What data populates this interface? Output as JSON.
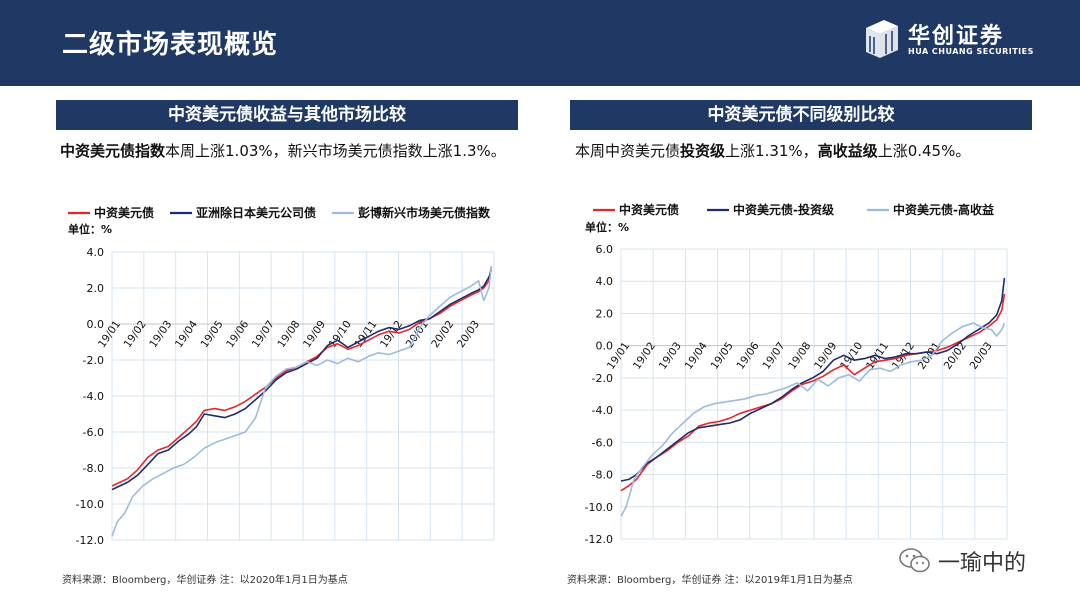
{
  "header": {
    "title": "二级市场表现概览",
    "logo_cn": "华创证券",
    "logo_en": "HUA CHUANG SECURITIES"
  },
  "left_panel": {
    "title": "中资美元债收益与其他市场比较",
    "summary_bold": "中资美元债指数",
    "summary_rest": "本周上涨1.03%，新兴市场美元债指数上涨1.3%。",
    "source": "资料来源：Bloomberg，华创证券   注：以2020年1月1日为基点"
  },
  "right_panel": {
    "title": "中资美元债不同级别比较",
    "summary_p1": "本周中资美元债",
    "summary_b1": "投资级",
    "summary_p2": "上涨1.31%，",
    "summary_b2": "高收益级",
    "summary_p3": "上涨0.45%。",
    "source": "资料来源：Bloomberg，华创证券   注：以2019年1月1日为基点"
  },
  "watermark": {
    "text": "一瑜中的"
  },
  "colors": {
    "header_bg": "#1f3864",
    "red": "#e8262a",
    "navy": "#1f2d6b",
    "light_blue": "#9dbbe0",
    "grid": "#d6e4f0"
  },
  "chart_data": [
    {
      "type": "line",
      "unit_label": "单位：%",
      "ylim": [
        -12,
        4
      ],
      "yticks": [
        "4.0",
        "2.0",
        "0.0",
        "-2.0",
        "-4.0",
        "-6.0",
        "-8.0",
        "-10.0",
        "-12.0"
      ],
      "xticks": [
        "19/01",
        "19/02",
        "19/03",
        "19/04",
        "19/05",
        "19/06",
        "19/07",
        "19/08",
        "19/09",
        "19/10",
        "19/11",
        "19/12",
        "20/01",
        "20/02",
        "20/03"
      ],
      "xlim": [
        0,
        14.9
      ],
      "grid": true,
      "legend_position": "top",
      "series": [
        {
          "name": "中资美元债",
          "color": "#e8262a",
          "x": [
            0,
            0.3,
            0.6,
            1.0,
            1.4,
            1.8,
            2.2,
            2.6,
            3.0,
            3.3,
            3.6,
            4.0,
            4.4,
            4.8,
            5.2,
            5.6,
            6.0,
            6.4,
            6.8,
            7.2,
            7.6,
            8.0,
            8.4,
            8.8,
            9.2,
            9.6,
            10.0,
            10.4,
            10.8,
            11.2,
            11.6,
            12.0,
            12.4,
            12.8,
            13.2,
            13.6,
            14.0,
            14.3,
            14.5,
            14.7,
            14.8
          ],
          "y": [
            -9.0,
            -8.8,
            -8.6,
            -8.1,
            -7.4,
            -7.0,
            -6.8,
            -6.3,
            -5.8,
            -5.4,
            -4.8,
            -4.7,
            -4.8,
            -4.6,
            -4.3,
            -3.9,
            -3.5,
            -3.0,
            -2.6,
            -2.4,
            -2.1,
            -1.8,
            -1.3,
            -1.1,
            -1.4,
            -1.2,
            -0.9,
            -0.6,
            -0.4,
            -0.5,
            -0.3,
            0.1,
            0.3,
            0.6,
            1.0,
            1.3,
            1.6,
            1.8,
            2.0,
            2.4,
            3.2
          ]
        },
        {
          "name": "亚洲除日本美元公司债",
          "color": "#1f2d6b",
          "x": [
            0,
            0.3,
            0.6,
            1.0,
            1.4,
            1.8,
            2.2,
            2.6,
            3.0,
            3.3,
            3.6,
            4.0,
            4.4,
            4.8,
            5.2,
            5.6,
            6.0,
            6.4,
            6.8,
            7.2,
            7.6,
            8.0,
            8.4,
            8.8,
            9.2,
            9.6,
            10.0,
            10.4,
            10.8,
            11.2,
            11.6,
            12.0,
            12.4,
            12.8,
            13.2,
            13.6,
            14.0,
            14.3,
            14.5,
            14.7,
            14.8
          ],
          "y": [
            -9.2,
            -9.0,
            -8.8,
            -8.4,
            -7.8,
            -7.2,
            -7.0,
            -6.5,
            -6.1,
            -5.7,
            -5.0,
            -5.1,
            -5.2,
            -5.0,
            -4.7,
            -4.2,
            -3.7,
            -3.1,
            -2.7,
            -2.5,
            -2.2,
            -1.9,
            -1.2,
            -0.9,
            -1.3,
            -1.0,
            -0.7,
            -0.4,
            -0.2,
            -0.3,
            -0.1,
            0.2,
            0.3,
            0.7,
            1.1,
            1.4,
            1.7,
            1.9,
            2.1,
            2.6,
            3.0
          ]
        },
        {
          "name": "彭博新兴市场美元债指数",
          "color": "#9dbbe0",
          "x": [
            0,
            0.2,
            0.5,
            0.8,
            1.2,
            1.6,
            2.0,
            2.4,
            2.8,
            3.2,
            3.6,
            4.0,
            4.4,
            4.8,
            5.2,
            5.6,
            6.0,
            6.4,
            6.8,
            7.2,
            7.6,
            8.0,
            8.4,
            8.8,
            9.2,
            9.6,
            10.0,
            10.4,
            10.8,
            11.2,
            11.6,
            12.0,
            12.4,
            12.8,
            13.2,
            13.6,
            14.0,
            14.3,
            14.5,
            14.7,
            14.8
          ],
          "y": [
            -11.8,
            -11.0,
            -10.5,
            -9.6,
            -9.0,
            -8.6,
            -8.3,
            -8.0,
            -7.8,
            -7.4,
            -6.9,
            -6.6,
            -6.4,
            -6.2,
            -6.0,
            -5.2,
            -3.5,
            -2.9,
            -2.5,
            -2.4,
            -2.1,
            -2.3,
            -2.0,
            -2.2,
            -1.9,
            -2.1,
            -1.8,
            -1.6,
            -1.7,
            -1.5,
            -1.3,
            -0.2,
            0.5,
            1.0,
            1.5,
            1.8,
            2.1,
            2.4,
            1.3,
            2.0,
            3.2
          ]
        }
      ]
    },
    {
      "type": "line",
      "unit_label": "单位：%",
      "ylim": [
        -12,
        6
      ],
      "yticks": [
        "6.0",
        "4.0",
        "2.0",
        "0.0",
        "-2.0",
        "-4.0",
        "-6.0",
        "-8.0",
        "-10.0",
        "-12.0"
      ],
      "xticks": [
        "19/01",
        "19/02",
        "19/03",
        "19/04",
        "19/05",
        "19/06",
        "19/07",
        "19/08",
        "19/09",
        "19/10",
        "19/11",
        "19/12",
        "20/01",
        "20/02",
        "20/03"
      ],
      "xlim": [
        0,
        14.9
      ],
      "grid": true,
      "legend_position": "top",
      "series": [
        {
          "name": "中资美元债",
          "color": "#e8262a",
          "x": [
            0,
            0.3,
            0.6,
            1.0,
            1.4,
            1.8,
            2.2,
            2.6,
            3.0,
            3.4,
            3.8,
            4.2,
            4.6,
            5.0,
            5.4,
            5.8,
            6.2,
            6.6,
            7.0,
            7.4,
            7.8,
            8.2,
            8.6,
            9.0,
            9.4,
            9.8,
            10.2,
            10.6,
            11.0,
            11.4,
            11.8,
            12.2,
            12.6,
            13.0,
            13.4,
            13.8,
            14.2,
            14.5,
            14.7,
            14.8
          ],
          "y": [
            -9.0,
            -8.7,
            -8.3,
            -7.4,
            -6.9,
            -6.5,
            -6.0,
            -5.6,
            -5.0,
            -4.8,
            -4.7,
            -4.5,
            -4.2,
            -4.0,
            -3.8,
            -3.6,
            -3.3,
            -2.8,
            -2.4,
            -2.2,
            -1.9,
            -1.5,
            -1.2,
            -1.8,
            -1.4,
            -1.0,
            -0.9,
            -0.8,
            -0.6,
            -0.5,
            -0.4,
            -0.3,
            -0.1,
            0.2,
            0.5,
            0.8,
            1.2,
            1.6,
            2.2,
            3.2
          ]
        },
        {
          "name": "中资美元债-投资级",
          "color": "#1f2d6b",
          "x": [
            0,
            0.3,
            0.6,
            1.0,
            1.4,
            1.8,
            2.2,
            2.6,
            3.0,
            3.4,
            3.8,
            4.2,
            4.6,
            5.0,
            5.4,
            5.8,
            6.2,
            6.6,
            7.0,
            7.4,
            7.8,
            8.2,
            8.6,
            9.0,
            9.4,
            9.8,
            10.2,
            10.6,
            11.0,
            11.4,
            11.8,
            12.2,
            12.6,
            13.0,
            13.4,
            13.8,
            14.2,
            14.5,
            14.7,
            14.8
          ],
          "y": [
            -8.4,
            -8.3,
            -8.0,
            -7.3,
            -6.9,
            -6.4,
            -5.9,
            -5.4,
            -5.1,
            -5.0,
            -4.9,
            -4.8,
            -4.6,
            -4.2,
            -3.9,
            -3.6,
            -3.2,
            -2.7,
            -2.3,
            -2.0,
            -1.6,
            -0.9,
            -0.6,
            -0.9,
            -0.8,
            -0.6,
            -0.8,
            -0.7,
            -0.5,
            -0.5,
            -0.4,
            -0.5,
            -0.3,
            0.1,
            0.6,
            1.0,
            1.4,
            1.9,
            2.8,
            4.2
          ]
        },
        {
          "name": "中资美元债-高收益",
          "color": "#9dbbe0",
          "x": [
            0,
            0.2,
            0.5,
            0.8,
            1.2,
            1.6,
            2.0,
            2.4,
            2.8,
            3.2,
            3.6,
            4.0,
            4.4,
            4.8,
            5.2,
            5.6,
            6.0,
            6.4,
            6.8,
            7.2,
            7.6,
            8.0,
            8.4,
            8.8,
            9.2,
            9.6,
            10.0,
            10.4,
            10.8,
            11.2,
            11.6,
            12.0,
            12.4,
            12.8,
            13.2,
            13.6,
            14.0,
            14.3,
            14.5,
            14.7,
            14.8
          ],
          "y": [
            -10.6,
            -10.0,
            -8.3,
            -7.6,
            -6.8,
            -6.2,
            -5.4,
            -4.8,
            -4.2,
            -3.8,
            -3.6,
            -3.5,
            -3.4,
            -3.3,
            -3.1,
            -3.0,
            -2.8,
            -2.6,
            -2.3,
            -2.8,
            -2.1,
            -2.5,
            -2.0,
            -1.8,
            -2.2,
            -1.5,
            -1.4,
            -1.6,
            -1.2,
            -1.0,
            -0.9,
            -0.6,
            0.3,
            0.8,
            1.2,
            1.4,
            1.1,
            1.0,
            0.6,
            1.0,
            1.4
          ]
        }
      ]
    }
  ]
}
